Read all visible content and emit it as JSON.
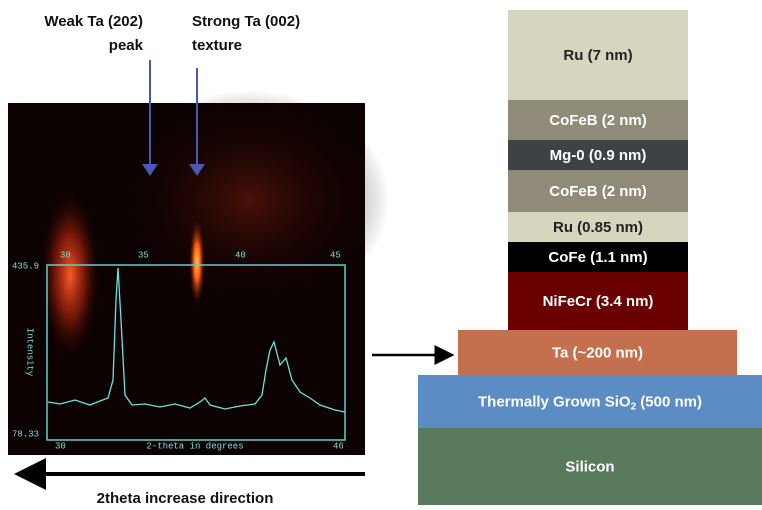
{
  "annotations": {
    "weak_peak": [
      "Weak Ta (202)",
      "peak"
    ],
    "strong_peak": [
      "Strong Ta (002)",
      "texture"
    ],
    "direction": "2theta increase direction"
  },
  "plot": {
    "top_ticks": [
      "30",
      "35",
      "40",
      "45"
    ],
    "y_max": "435.9",
    "y_min": "78.33",
    "y_label": "Intensity",
    "x_label": "2-theta in degrees",
    "x_start": "30",
    "x_end": "46"
  },
  "layers": [
    {
      "label": "Ru (7 nm)"
    },
    {
      "label": "CoFeB (2 nm)"
    },
    {
      "label": "Mg-0 (0.9 nm)"
    },
    {
      "label": "CoFeB (2 nm)"
    },
    {
      "label": "Ru (0.85 nm)"
    },
    {
      "label": "CoFe (1.1 nm)"
    },
    {
      "label": "NiFeCr (3.4 nm)"
    },
    {
      "label": "Ta (~200 nm)"
    },
    {
      "label_parts": [
        "Thermally Grown SiO",
        "2",
        " (500 nm)"
      ]
    },
    {
      "label": "Silicon"
    }
  ]
}
